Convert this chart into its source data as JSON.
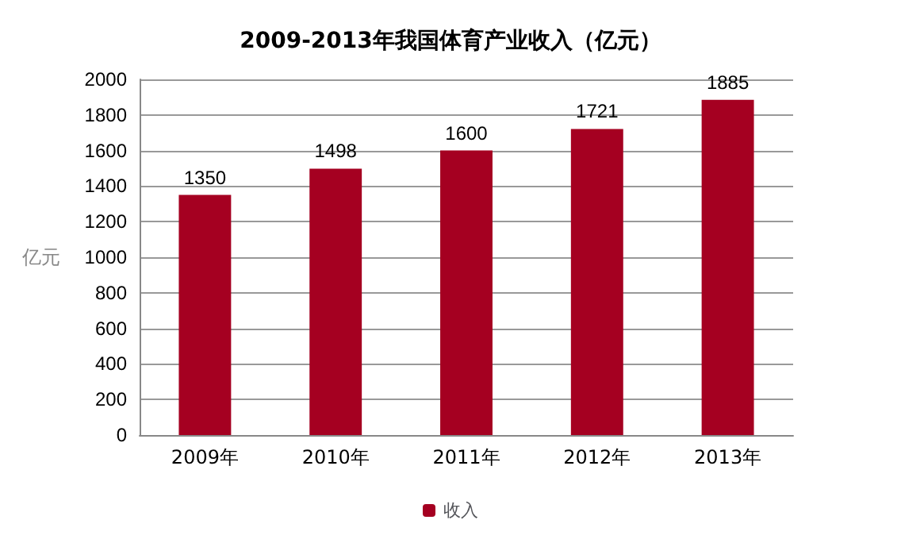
{
  "chart_data": {
    "type": "bar",
    "title": "2009-2013年我国体育产业收入（亿元）",
    "ylabel": "亿元",
    "categories": [
      "2009年",
      "2010年",
      "2011年",
      "2012年",
      "2013年"
    ],
    "series": [
      {
        "name": "收入",
        "color": "#a50021",
        "values": [
          1350,
          1498,
          1600,
          1721,
          1885
        ]
      }
    ],
    "ylim": [
      0,
      2000
    ],
    "yticks": [
      0,
      200,
      400,
      600,
      800,
      1000,
      1200,
      1400,
      1600,
      1800,
      2000
    ],
    "grid": "y",
    "legend": "bottom",
    "data_labels": true
  }
}
